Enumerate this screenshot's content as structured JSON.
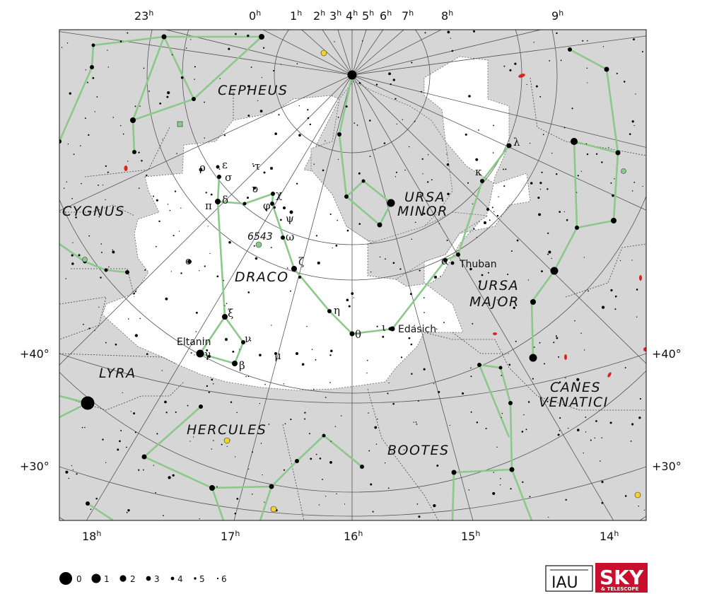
{
  "constellations": {
    "draco": "DRACO",
    "cepheus": "CEPHEUS",
    "cygnus": "CYGNUS",
    "ursa_minor": [
      "URSA",
      "MINOR"
    ],
    "ursa_major": [
      "URSA",
      "MAJOR"
    ],
    "lyra": "LYRA",
    "hercules": "HERCULES",
    "bootes": "BOOTES",
    "canes_venatici": [
      "CANES",
      "VENATICI"
    ]
  },
  "star_names": {
    "thuban": "Thuban",
    "eltanin": "Eltanin",
    "edasich": "Edasich"
  },
  "greek_letters": {
    "rho": "ρ",
    "epsilon": "ε",
    "sigma": "σ",
    "tau": "τ",
    "upsilon": "υ",
    "chi": "χ",
    "pi": "π",
    "delta": "δ",
    "phi": "φ",
    "psi": "ψ",
    "omega": "ω",
    "omicron": "ο",
    "zeta": "ζ",
    "eta": "η",
    "xi": "ξ",
    "nu": "ν",
    "gamma": "γ",
    "beta": "β",
    "mu": "μ",
    "theta": "θ",
    "iota": "ι",
    "alpha": "α",
    "kappa": "κ",
    "lambda": "λ"
  },
  "deep_sky": {
    "ngc6543": "6543"
  },
  "ra_top": [
    {
      "v": "23",
      "u": "h"
    },
    {
      "v": "0",
      "u": "h"
    },
    {
      "v": "1",
      "u": "h"
    },
    {
      "v": "2",
      "u": "h"
    },
    {
      "v": "3",
      "u": "h"
    },
    {
      "v": "4",
      "u": "h"
    },
    {
      "v": "5",
      "u": "h"
    },
    {
      "v": "6",
      "u": "h"
    },
    {
      "v": "7",
      "u": "h"
    },
    {
      "v": "8",
      "u": "h"
    },
    {
      "v": "9",
      "u": "h"
    }
  ],
  "ra_bottom": [
    {
      "v": "18",
      "u": "h"
    },
    {
      "v": "17",
      "u": "h"
    },
    {
      "v": "16",
      "u": "h"
    },
    {
      "v": "15",
      "u": "h"
    },
    {
      "v": "14",
      "u": "h"
    }
  ],
  "dec": {
    "plus40": "+40°",
    "plus30": "+30°"
  },
  "legend": [
    "0",
    "1",
    "2",
    "3",
    "4",
    "5",
    "6"
  ],
  "logos": {
    "iau": "IAU",
    "sky": "SKY",
    "telescope": "& TELESCOPE"
  },
  "colors": {
    "field": "#d6d6d6",
    "draco_area": "#ffffff",
    "stick": "#8bc98b",
    "grid": "#555555",
    "boundary": "#444444"
  }
}
